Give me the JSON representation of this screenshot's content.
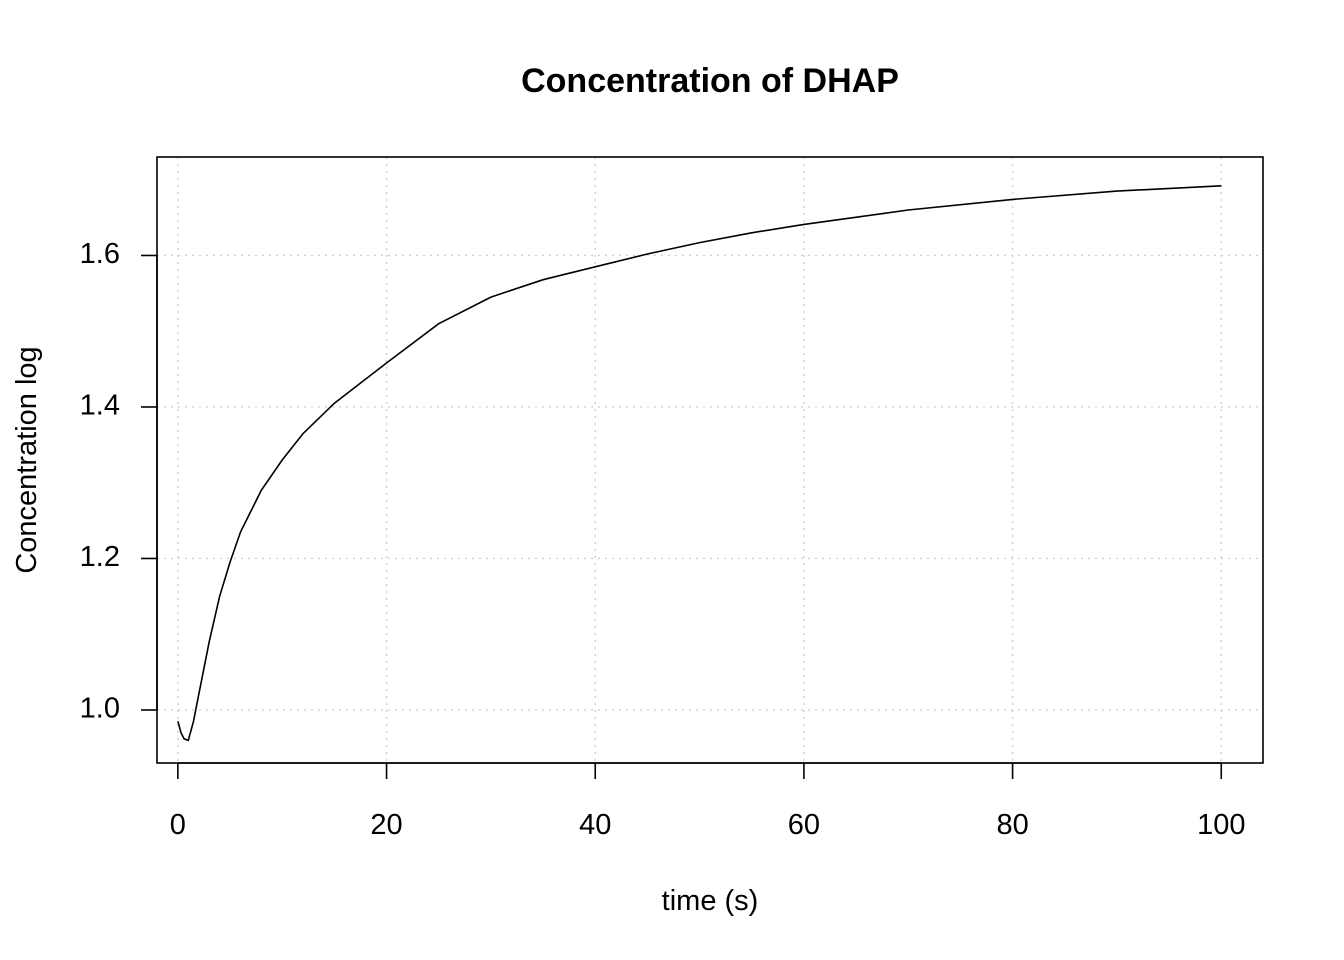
{
  "chart_data": {
    "type": "line",
    "title": "Concentration of DHAP",
    "xlabel": "time (s)",
    "ylabel": "Concentration log",
    "xlim": [
      -2,
      104
    ],
    "ylim": [
      0.93,
      1.73
    ],
    "x_ticks": [
      0,
      20,
      40,
      60,
      80,
      100
    ],
    "y_ticks": [
      1.0,
      1.2,
      1.4,
      1.6
    ],
    "y_tick_labels": [
      "1.0",
      "1.2",
      "1.4",
      "1.6"
    ],
    "grid": true,
    "legend": "none",
    "series": [
      {
        "color": "#000000",
        "x": [
          0,
          0.3,
          0.6,
          1,
          1.5,
          2,
          3,
          4,
          5,
          6,
          8,
          10,
          12,
          15,
          20,
          25,
          30,
          35,
          40,
          45,
          50,
          55,
          60,
          70,
          80,
          90,
          100
        ],
        "y": [
          0.985,
          0.97,
          0.962,
          0.96,
          0.985,
          1.02,
          1.09,
          1.15,
          1.195,
          1.235,
          1.29,
          1.33,
          1.365,
          1.405,
          1.458,
          1.51,
          1.545,
          1.568,
          1.585,
          1.602,
          1.617,
          1.63,
          1.641,
          1.66,
          1.674,
          1.685,
          1.692
        ]
      }
    ]
  }
}
